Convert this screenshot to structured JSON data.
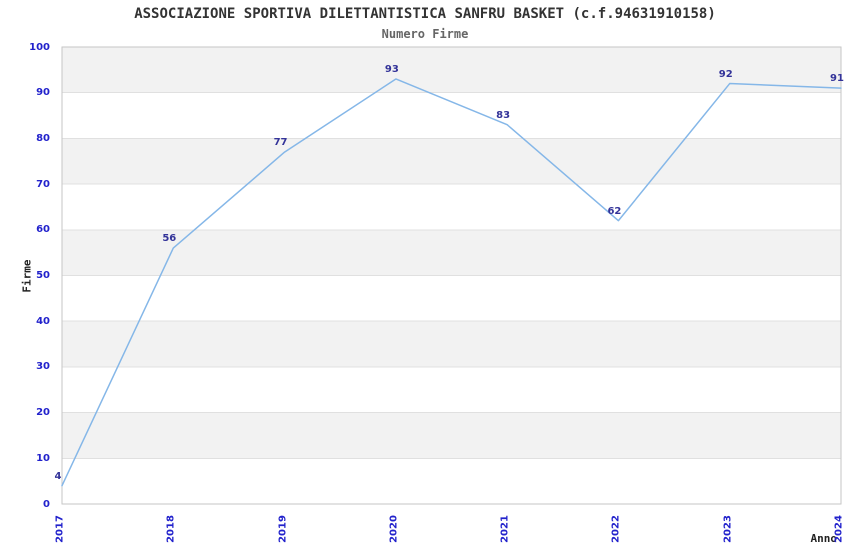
{
  "chart_data": {
    "type": "line",
    "title": "ASSOCIAZIONE SPORTIVA DILETTANTISTICA SANFRU BASKET (c.f.94631910158)",
    "subtitle": "Numero Firme",
    "xlabel": "Anno",
    "ylabel": "Firme",
    "categories": [
      "2017",
      "2018",
      "2019",
      "2020",
      "2021",
      "2022",
      "2023",
      "2024"
    ],
    "values": [
      4,
      56,
      77,
      93,
      83,
      62,
      92,
      91
    ],
    "ylim": [
      0,
      100
    ],
    "ytick_step": 10,
    "grid": true,
    "legend": "none",
    "colors": {
      "line": "#85b7e8",
      "band": "#f2f2f2",
      "grid": "#e0e0e0",
      "border": "#c6c6c6",
      "tick_label": "#2222cc",
      "data_label": "#333399",
      "title": "#333333",
      "subtitle": "#666666",
      "axis_title": "#222222"
    }
  }
}
